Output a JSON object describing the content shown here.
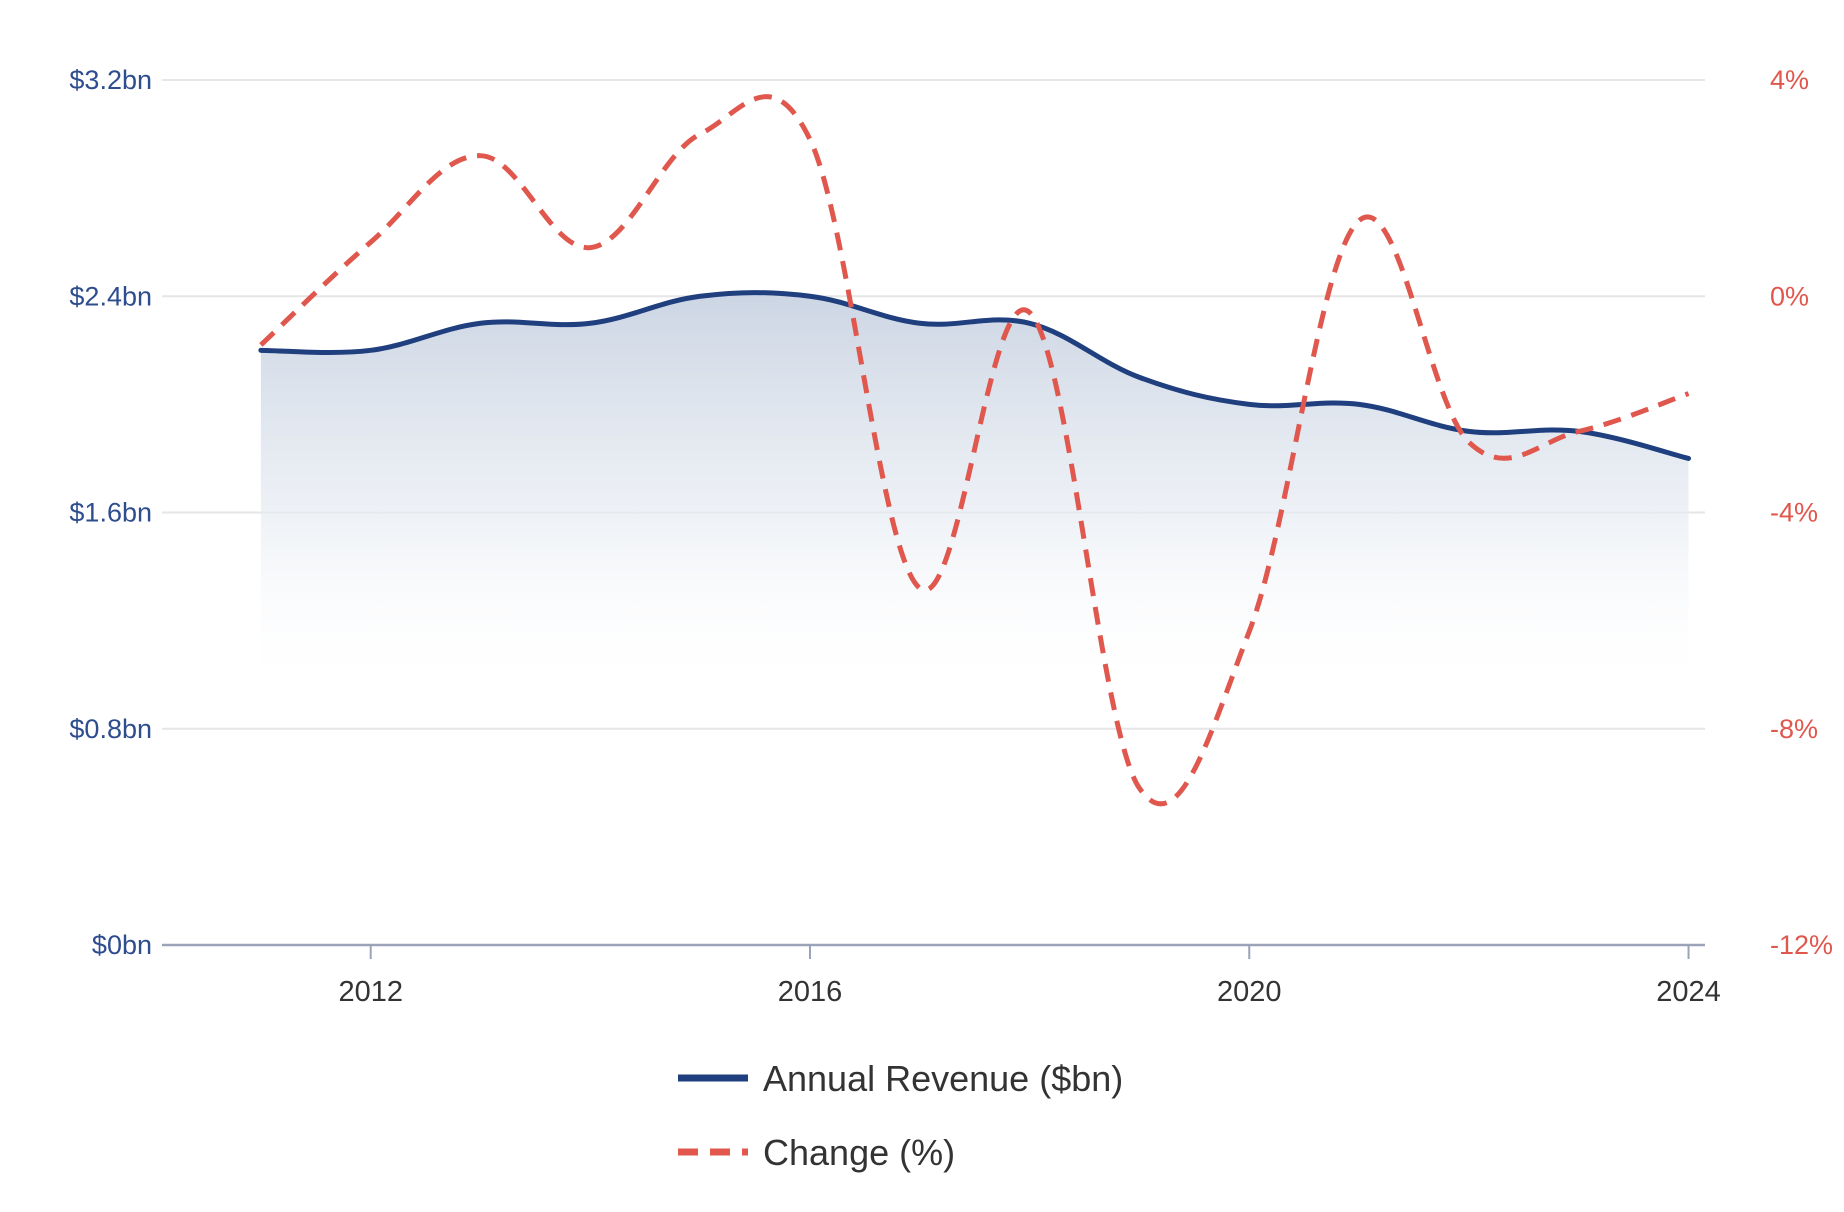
{
  "chart_data": {
    "type": "line",
    "x": [
      2011,
      2012,
      2013,
      2014,
      2015,
      2016,
      2017,
      2018,
      2019,
      2020,
      2021,
      2022,
      2023,
      2024
    ],
    "series": [
      {
        "name": "Annual Revenue ($bn)",
        "axis": "left",
        "style": "solid",
        "color": "#1f3f7f",
        "values": [
          2.2,
          2.2,
          2.3,
          2.3,
          2.4,
          2.4,
          2.3,
          2.3,
          2.1,
          2.0,
          2.0,
          1.9,
          1.9,
          1.8
        ]
      },
      {
        "name": "Change (%)",
        "axis": "right",
        "style": "dashed",
        "color": "#e0574d",
        "values": [
          -0.9,
          1.0,
          2.6,
          0.9,
          3.0,
          2.9,
          -5.4,
          -0.3,
          -9.1,
          -6.2,
          1.4,
          -2.7,
          -2.5,
          -1.8
        ]
      }
    ],
    "x_axis": {
      "ticks": [
        2012,
        2016,
        2020,
        2024
      ],
      "tick_labels": [
        "2012",
        "2016",
        "2020",
        "2024"
      ],
      "range": [
        2010.4,
        2024.15
      ]
    },
    "y_left": {
      "range": [
        0,
        3.2
      ],
      "ticks": [
        0,
        0.8,
        1.6,
        2.4,
        3.2
      ],
      "tick_labels": [
        "$0bn",
        "$0.8bn",
        "$1.6bn",
        "$2.4bn",
        "$3.2bn"
      ],
      "color": "#2e4d8f"
    },
    "y_right": {
      "range": [
        -12,
        4
      ],
      "ticks": [
        -12,
        -8,
        -4,
        0,
        4
      ],
      "tick_labels": [
        "-12%",
        "-8%",
        "-4%",
        "0%",
        "4%"
      ],
      "color": "#e0574d"
    },
    "grid": true,
    "legend": {
      "position": "bottom-center",
      "entries": [
        "Annual Revenue ($bn)",
        "Change (%)"
      ]
    }
  }
}
